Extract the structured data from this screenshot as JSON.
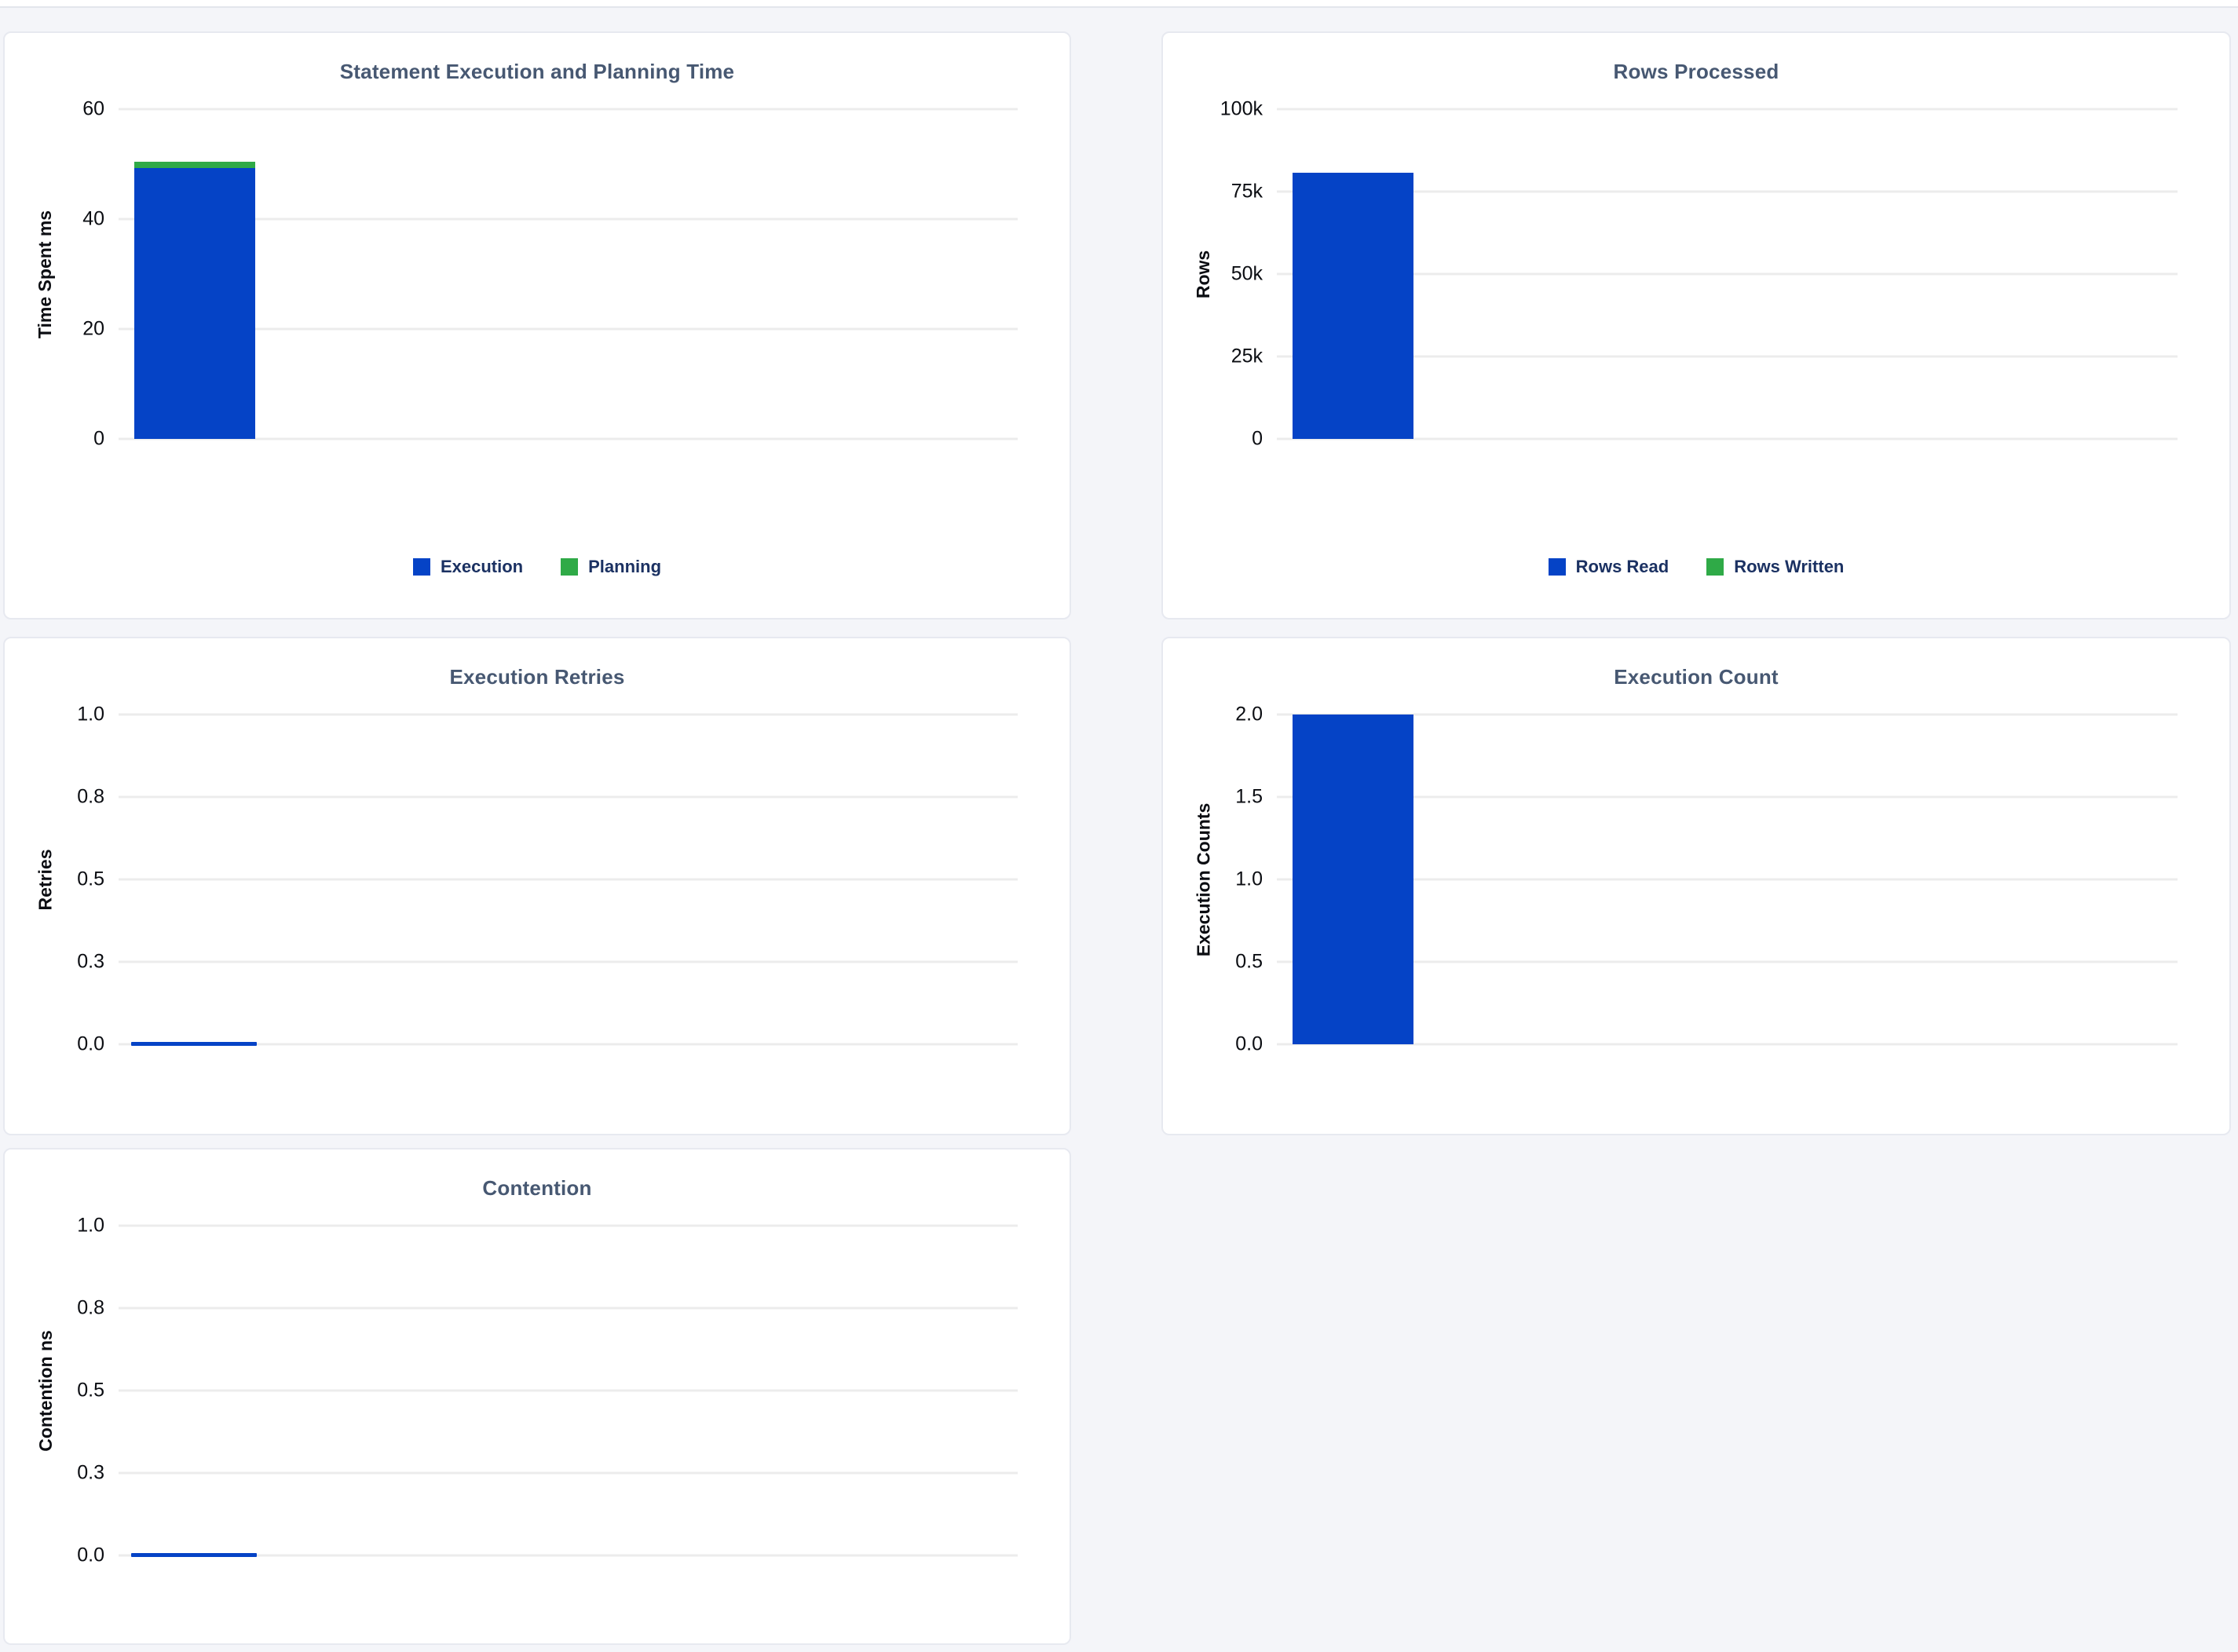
{
  "colors": {
    "page_bg": "#f4f5f9",
    "panel_bg": "#ffffff",
    "panel_border": "#e7e9f0",
    "grid_line": "#ececec",
    "bar_blue": "#0543c6",
    "bar_green": "#2faa47",
    "title_text": "#475872",
    "tick_text": "#0b0d12",
    "legend_text": "#1b3162"
  },
  "chart_data": [
    {
      "type": "bar",
      "title": "Statement Execution and Planning Time",
      "ylabel": "Time Spent ms",
      "ylim": [
        0,
        60
      ],
      "ytick_labels": [
        "60",
        "40",
        "20",
        "0"
      ],
      "grid": true,
      "legend_position": "bottom-center",
      "categories": [
        ""
      ],
      "series": [
        {
          "name": "Execution",
          "color": "#0543c6",
          "values": [
            49.3
          ]
        },
        {
          "name": "Planning",
          "color": "#2faa47",
          "values": [
            1.2
          ]
        }
      ],
      "legend": [
        {
          "label": "Execution",
          "color": "#0543c6"
        },
        {
          "label": "Planning",
          "color": "#2faa47"
        }
      ]
    },
    {
      "type": "bar",
      "title": "Rows Processed",
      "ylabel": "Rows",
      "ylim": [
        0,
        100000
      ],
      "ytick_labels": [
        "100k",
        "75k",
        "50k",
        "25k",
        "0"
      ],
      "grid": true,
      "legend_position": "bottom-center",
      "categories": [
        ""
      ],
      "series": [
        {
          "name": "Rows Read",
          "color": "#0543c6",
          "values": [
            80600
          ]
        },
        {
          "name": "Rows Written",
          "color": "#2faa47",
          "values": [
            0
          ]
        }
      ],
      "legend": [
        {
          "label": "Rows Read",
          "color": "#0543c6"
        },
        {
          "label": "Rows Written",
          "color": "#2faa47"
        }
      ]
    },
    {
      "type": "bar",
      "title": "Execution Retries",
      "ylabel": "Retries",
      "ylim": [
        0,
        1
      ],
      "ytick_labels": [
        "1.0",
        "0.8",
        "0.5",
        "0.3",
        "0.0"
      ],
      "grid": true,
      "legend_position": "none",
      "categories": [
        ""
      ],
      "series": [
        {
          "name": "Retries",
          "color": "#0543c6",
          "values": [
            0
          ]
        }
      ],
      "legend": []
    },
    {
      "type": "bar",
      "title": "Execution Count",
      "ylabel": "Execution Counts",
      "ylim": [
        0,
        2
      ],
      "ytick_labels": [
        "2.0",
        "1.5",
        "1.0",
        "0.5",
        "0.0"
      ],
      "grid": true,
      "legend_position": "none",
      "categories": [
        ""
      ],
      "series": [
        {
          "name": "Execution Counts",
          "color": "#0543c6",
          "values": [
            2
          ]
        }
      ],
      "legend": []
    },
    {
      "type": "bar",
      "title": "Contention",
      "ylabel": "Contention ns",
      "ylim": [
        0,
        1
      ],
      "ytick_labels": [
        "1.0",
        "0.8",
        "0.5",
        "0.3",
        "0.0"
      ],
      "grid": true,
      "legend_position": "none",
      "categories": [
        ""
      ],
      "series": [
        {
          "name": "Contention",
          "color": "#0543c6",
          "values": [
            0
          ]
        }
      ],
      "legend": []
    }
  ]
}
